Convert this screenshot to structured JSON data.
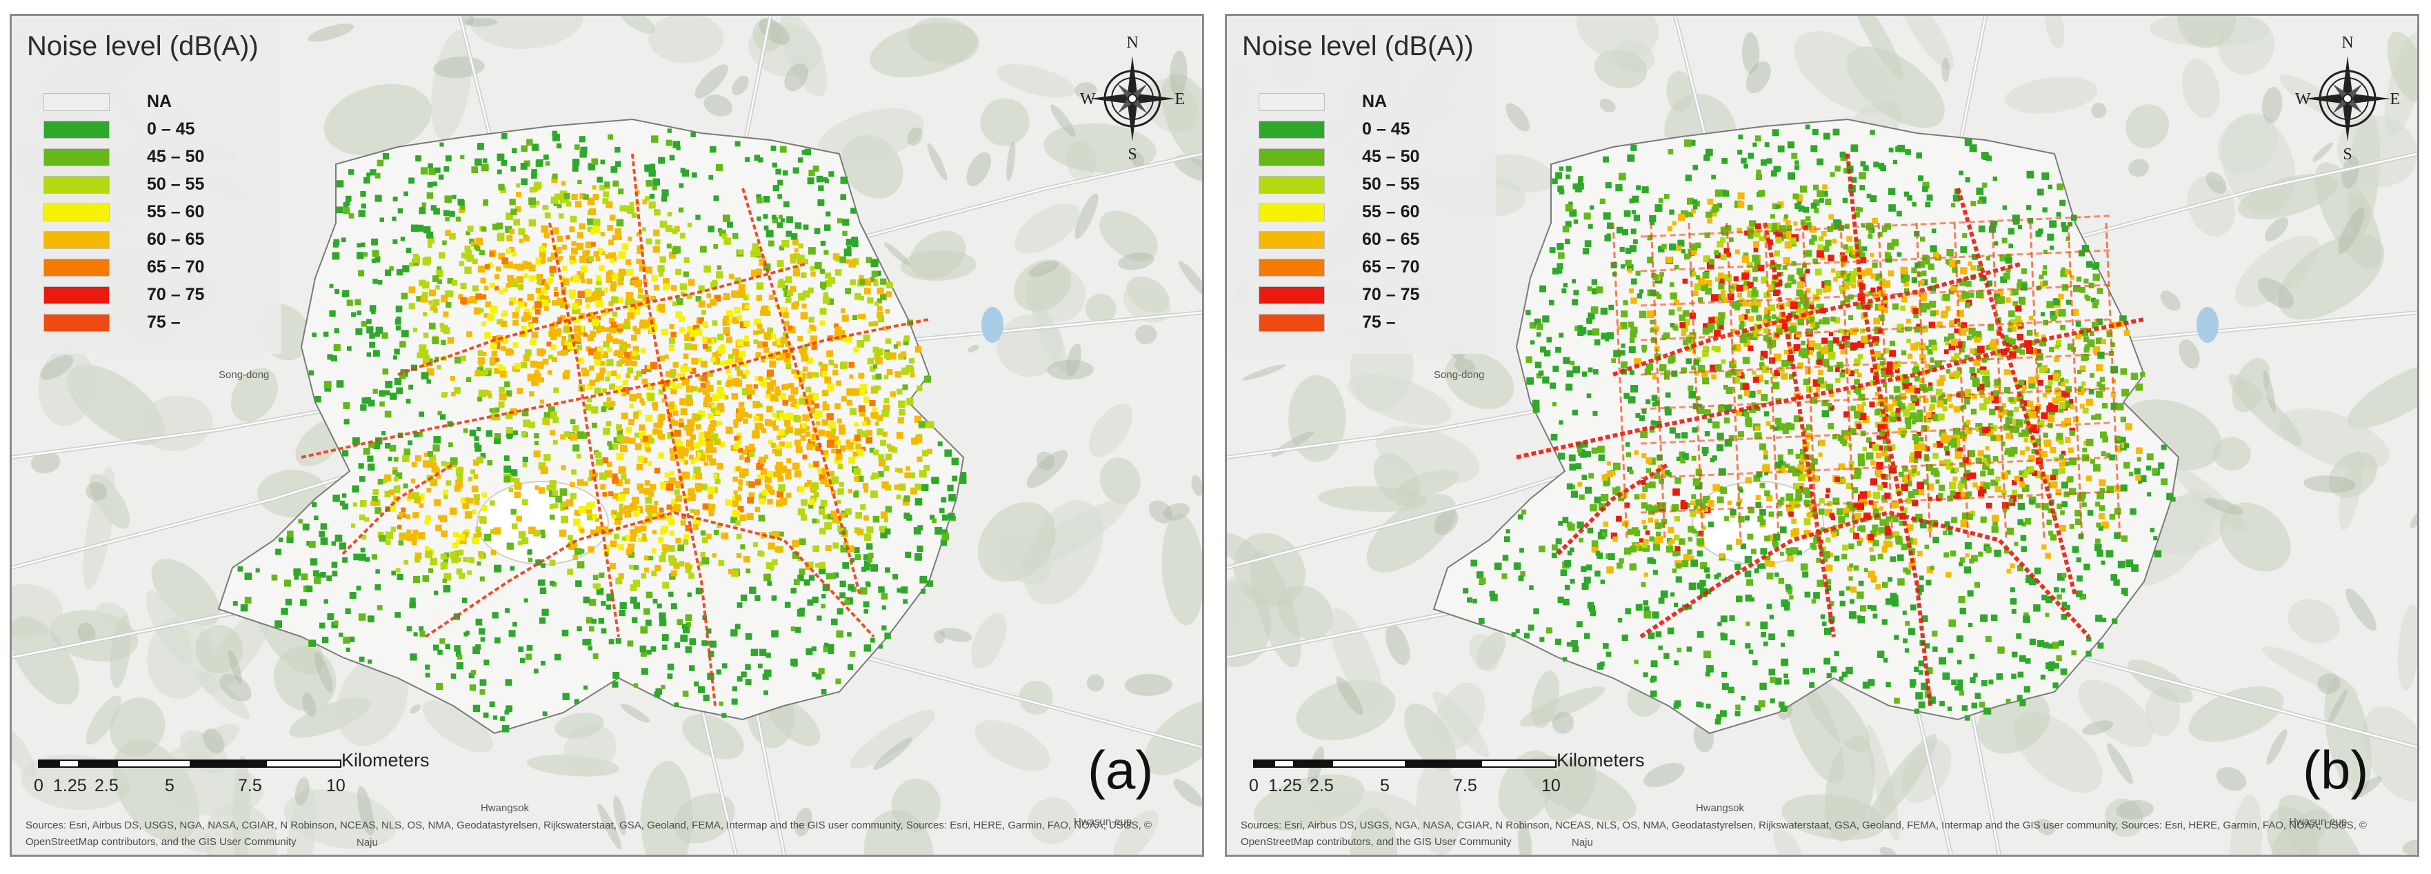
{
  "legend": {
    "title": "Noise level (dB(A))",
    "items": [
      {
        "label": "NA",
        "color": "#eeeeee"
      },
      {
        "label": "0 – 45",
        "color": "#2ea82a"
      },
      {
        "label": "45 – 50",
        "color": "#64b817"
      },
      {
        "label": "50 – 55",
        "color": "#b5d911"
      },
      {
        "label": "55 – 60",
        "color": "#f6f200"
      },
      {
        "label": "60 – 65",
        "color": "#f6b800"
      },
      {
        "label": "65 – 70",
        "color": "#f77a00"
      },
      {
        "label": "70 – 75",
        "color": "#ea1a10"
      },
      {
        "label": "75 –",
        "color": "#f04a14"
      }
    ]
  },
  "compass": {
    "n": "N",
    "s": "S",
    "e": "E",
    "w": "W"
  },
  "scale": {
    "ticks": [
      "0",
      "1.25",
      "2.5",
      "5",
      "7.5",
      "10"
    ],
    "unit": "Kilometers"
  },
  "panels": [
    {
      "letter": "(a)"
    },
    {
      "letter": "(b)"
    }
  ],
  "places": {
    "song": "Song-dong",
    "naju": "Naju",
    "hwasun": "Hwasun-eup",
    "hwangsok": "Hwangsok"
  },
  "credits": {
    "line1": "Sources: Esri, Airbus DS, USGS, NGA, NASA, CGIAR, N Robinson, NCEAS, NLS, OS, NMA, Geodatastyrelsen, Rijkswaterstaat, GSA, Geoland, FEMA, Intermap and the GIS user community, Sources: Esri, HERE, Garmin, FAO, NOAA, USGS, ©",
    "line2": "OpenStreetMap contributors, and the GIS User Community"
  }
}
